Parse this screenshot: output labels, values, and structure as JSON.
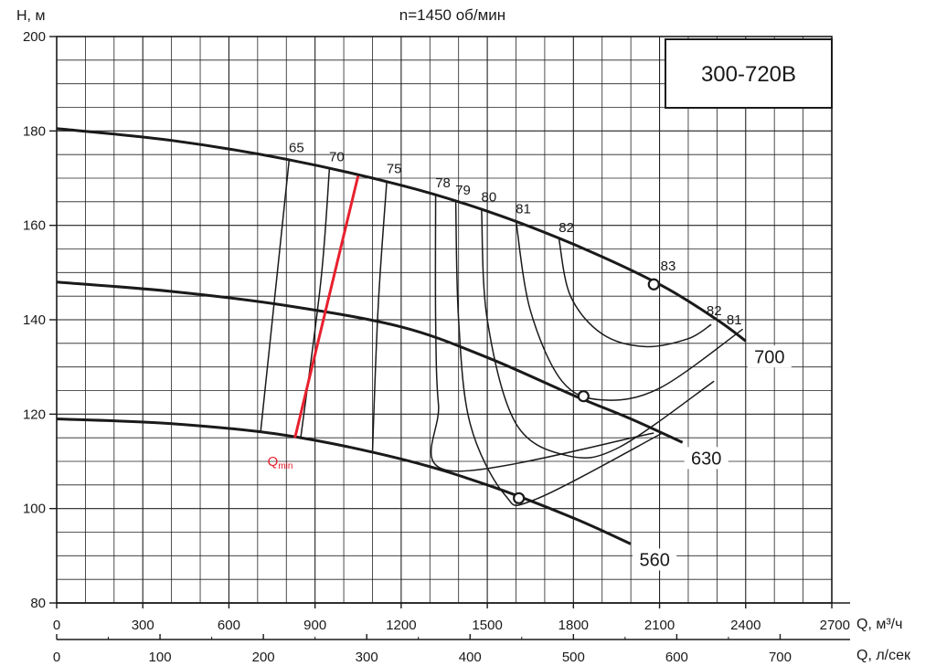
{
  "chart_data": {
    "type": "line",
    "title": "n=1450 об/мин",
    "model_label": "300-720В",
    "xlabel": "Q, м³/ч",
    "x2label": "Q, л/сек",
    "ylabel": "H, м",
    "xlim": [
      0,
      2700
    ],
    "ylim": [
      80,
      200
    ],
    "x_ticks": [
      "0",
      "300",
      "600",
      "900",
      "1200",
      "1500",
      "1800",
      "2100",
      "2400",
      "2700"
    ],
    "x2_ticks": [
      "0",
      "100",
      "200",
      "300",
      "400",
      "500",
      "600",
      "700"
    ],
    "y_ticks": [
      "80",
      "100",
      "120",
      "140",
      "160",
      "180",
      "200"
    ],
    "grid": true,
    "series": [
      {
        "name": "700",
        "x": [
          0,
          400,
          800,
          1200,
          1500,
          1800,
          2100,
          2300,
          2400
        ],
        "y": [
          180.5,
          178,
          174,
          168.5,
          163,
          156,
          147.5,
          140,
          135.5
        ]
      },
      {
        "name": "630",
        "x": [
          0,
          400,
          800,
          1200,
          1500,
          1800,
          2000,
          2180
        ],
        "y": [
          148,
          146,
          143,
          138.5,
          132,
          124,
          119,
          114
        ]
      },
      {
        "name": "560",
        "x": [
          0,
          400,
          800,
          1200,
          1500,
          1800,
          2000
        ],
        "y": [
          119,
          118,
          115.5,
          110.5,
          105,
          98,
          92.5
        ]
      }
    ],
    "operating_points": [
      {
        "x": 2080,
        "y": 147.5
      },
      {
        "x": 1835,
        "y": 123.8
      },
      {
        "x": 1610,
        "y": 102.2
      }
    ],
    "efficiency_lines": [
      {
        "label": "65",
        "pts": [
          [
            810,
            174
          ],
          [
            710,
            116
          ]
        ]
      },
      {
        "label": "70",
        "pts": [
          [
            950,
            172
          ],
          [
            920,
            148
          ],
          [
            850,
            115
          ]
        ]
      },
      {
        "label": "75",
        "pts": [
          [
            1150,
            169.5
          ],
          [
            1120,
            143
          ],
          [
            1100,
            112
          ]
        ]
      },
      {
        "label": "78",
        "pts": [
          [
            1320,
            166.5
          ],
          [
            1320,
            140
          ],
          [
            1330,
            122
          ],
          [
            1370,
            108
          ],
          [
            2080,
            116
          ]
        ]
      },
      {
        "label": "79",
        "pts": [
          [
            1390,
            165
          ],
          [
            1400,
            140
          ],
          [
            1440,
            118
          ],
          [
            1560,
            103
          ],
          [
            1670,
            102
          ],
          [
            2110,
            116
          ]
        ]
      },
      {
        "label": "80",
        "pts": [
          [
            1480,
            163.5
          ],
          [
            1500,
            140
          ],
          [
            1600,
            118
          ],
          [
            1780,
            111.2
          ],
          [
            1960,
            113
          ],
          [
            2290,
            127
          ]
        ]
      },
      {
        "label": "81",
        "pts": [
          [
            1600,
            161
          ],
          [
            1650,
            142
          ],
          [
            1760,
            127
          ],
          [
            1900,
            123
          ],
          [
            2100,
            125.5
          ],
          [
            2390,
            138
          ]
        ]
      },
      {
        "label": "82",
        "pts": [
          [
            1750,
            157
          ],
          [
            1790,
            145
          ],
          [
            1900,
            137
          ],
          [
            2050,
            134.3
          ],
          [
            2200,
            136
          ],
          [
            2280,
            139
          ]
        ]
      }
    ],
    "extra_labels": [
      {
        "text": "83",
        "x": 2130,
        "y": 150.5
      },
      {
        "text": "82",
        "x": 2290,
        "y": 141
      },
      {
        "text": "81",
        "x": 2360,
        "y": 139
      }
    ],
    "qmin": {
      "label": "Q",
      "sub": "min",
      "pts": [
        [
          1050,
          170.5
        ],
        [
          830,
          115
        ]
      ]
    }
  }
}
